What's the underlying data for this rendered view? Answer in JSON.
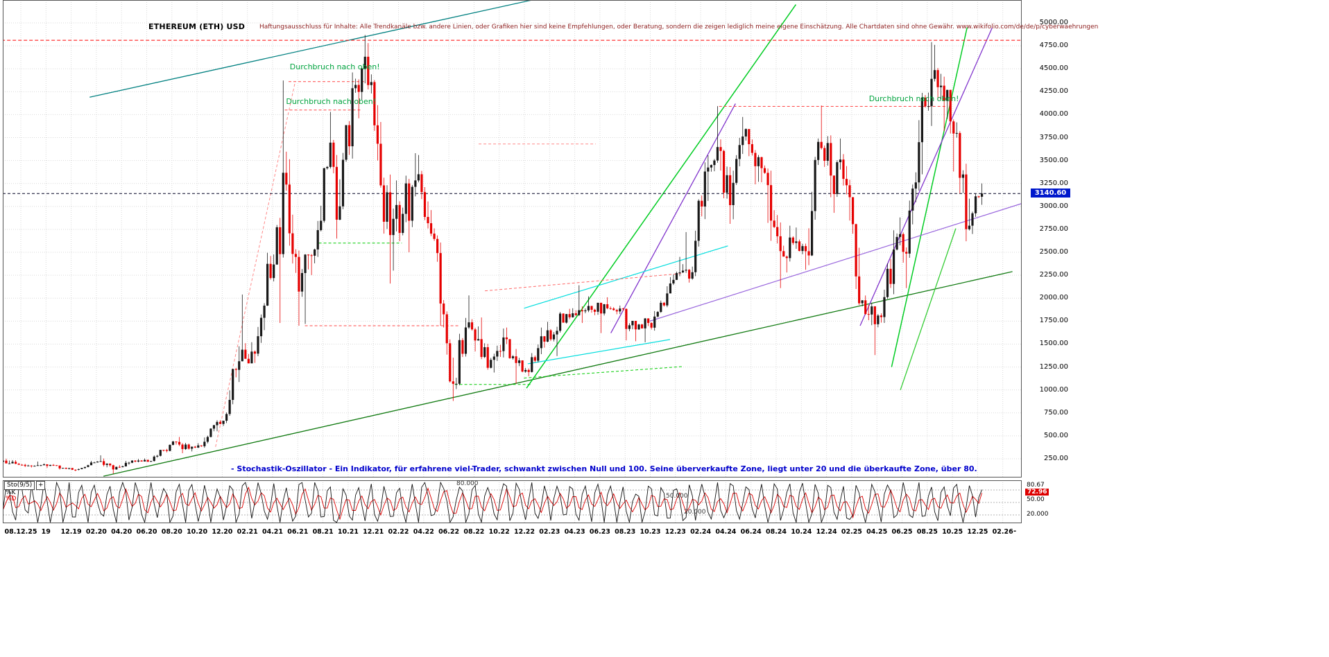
{
  "header": {
    "title": "ETHEREUM (ETH) USD",
    "disclaimer": "Haftungsausschluss für Inhalte: Alle Trendkanäle bzw. andere Linien, oder Grafiken hier sind keine Empfehlungen, oder Beratung, sondern die zeigen lediglich meine eigene Einschätzung. Alle Chartdaten sind ohne Gewähr.  www.wikifolio.com/de/de/p/cyberwaehrungen"
  },
  "annotations": [
    {
      "text": "Durchbruch nach oben!",
      "m": 17.4,
      "price": 4520
    },
    {
      "text": "Durchbruch nach oben!",
      "m": 17.1,
      "price": 4140
    },
    {
      "text": "Durchbruch nach oben!",
      "m": 63.4,
      "price": 4170
    }
  ],
  "note": "- Stochastik-Oszillator - Ein Indikator, für erfahrene viel-Trader, schwankt zwischen Null und 100. Seine überverkaufte Zone, liegt unter 20 und die überkaufte Zone, über 80.",
  "price_axis": {
    "min": 250,
    "max": 5000,
    "step": 250,
    "current": "3140.60",
    "current_value": 3140.6
  },
  "x_axis": {
    "labels": [
      "08.12.25",
      "19",
      "12.19",
      "02.20",
      "04.20",
      "06.20",
      "08.20",
      "10.20",
      "12.20",
      "02.21",
      "04.21",
      "06.21",
      "08.21",
      "10.21",
      "12.21",
      "02.22",
      "04.22",
      "06.22",
      "08.22",
      "10.22",
      "12.22",
      "02.23",
      "04.23",
      "06.23",
      "08.23",
      "10.23",
      "12.23",
      "02.24",
      "04.24",
      "06.24",
      "08.24",
      "10.24",
      "12.24",
      "02.25",
      "04.25",
      "06.25",
      "08.25",
      "10.25",
      "12.25",
      "02.26"
    ],
    "end_dash": "-"
  },
  "oscillator": {
    "indicator_label": "Sto(9/5)",
    "plus_label": "+",
    "k_label": "%K",
    "d_label": "%D",
    "k_value": "80.67",
    "d_value": "72.96",
    "mid_value": "50.00",
    "bottom_value": "20.000",
    "levels": [
      {
        "value": 80,
        "label": "80.000"
      },
      {
        "value": 50,
        "label": "50.000"
      },
      {
        "value": 20,
        "label": "20.000"
      }
    ]
  },
  "colors": {
    "up": "#181818",
    "down": "#e60000",
    "grid": "#d9d9d9",
    "current_badge": "#0018cc",
    "annotation": "#00a33e",
    "note_text": "#0000cc",
    "disclaimer_text": "#8b1a1a",
    "k_line": "#111111",
    "d_line": "#dd0000"
  },
  "chart_data": {
    "type": "candlestick",
    "title": "ETHEREUM (ETH) USD",
    "x_unit": "month",
    "ylim": [
      0,
      5100
    ],
    "y_ticks_step": 250,
    "current_price": 3140.6,
    "months": [
      "07.19",
      "08.19",
      "09.19",
      "10.19",
      "11.19",
      "12.19",
      "01.20",
      "02.20",
      "03.20",
      "04.20",
      "05.20",
      "06.20",
      "07.20",
      "08.20",
      "09.20",
      "10.20",
      "11.20",
      "12.20",
      "01.21",
      "02.21",
      "03.21",
      "04.21",
      "05.21",
      "06.21",
      "07.21",
      "08.21",
      "09.21",
      "10.21",
      "11.21",
      "12.21",
      "01.22",
      "02.22",
      "03.22",
      "04.22",
      "05.22",
      "06.22",
      "07.22",
      "08.22",
      "09.22",
      "10.22",
      "11.22",
      "12.22",
      "01.23",
      "02.23",
      "03.23",
      "04.23",
      "05.23",
      "06.23",
      "07.23",
      "08.23",
      "09.23",
      "10.23",
      "11.23",
      "12.23",
      "01.24",
      "02.24",
      "03.24",
      "04.24",
      "05.24",
      "06.24",
      "07.24",
      "08.24",
      "09.24",
      "10.24",
      "11.24",
      "12.24",
      "01.25",
      "02.25",
      "03.25",
      "04.25",
      "05.25",
      "06.25",
      "07.25",
      "08.25",
      "09.25",
      "10.25",
      "11.25",
      "12.25"
    ],
    "close": [
      217,
      172,
      180,
      183,
      151,
      130,
      180,
      224,
      134,
      206,
      231,
      226,
      346,
      434,
      360,
      387,
      616,
      738,
      1313,
      1418,
      1919,
      2773,
      2707,
      2274,
      2531,
      3430,
      3001,
      4288,
      4631,
      3683,
      2688,
      2919,
      3283,
      2817,
      1942,
      1067,
      1681,
      1554,
      1328,
      1572,
      1294,
      1196,
      1585,
      1605,
      1827,
      1869,
      1874,
      1934,
      1856,
      1705,
      1671,
      1800,
      2052,
      2281,
      2283,
      3380,
      3647,
      3014,
      3762,
      3438,
      3232,
      2513,
      2602,
      2512,
      3703,
      3336,
      3300,
      2237,
      1822,
      1794,
      2530,
      2486,
      3700,
      4390,
      4150,
      3800,
      2790,
      3140.6
    ],
    "high": [
      320,
      235,
      220,
      200,
      192,
      155,
      185,
      288,
      253,
      227,
      248,
      254,
      347,
      446,
      488,
      420,
      620,
      755,
      1476,
      2040,
      1945,
      2798,
      4372,
      2910,
      2540,
      3440,
      4030,
      4460,
      4868,
      4780,
      3920,
      3283,
      3580,
      3560,
      2960,
      1980,
      1785,
      2030,
      1790,
      1670,
      1680,
      1350,
      1680,
      1742,
      1850,
      2141,
      2020,
      1950,
      2010,
      1920,
      1753,
      1860,
      2130,
      2450,
      2720,
      3480,
      4093,
      3730,
      3975,
      3850,
      3560,
      3390,
      2790,
      2770,
      3740,
      4100,
      3740,
      3440,
      2550,
      1950,
      2740,
      2880,
      3940,
      4790,
      4760,
      4270,
      3820,
      3250
    ],
    "low": [
      200,
      160,
      155,
      150,
      132,
      116,
      124,
      210,
      88,
      131,
      185,
      216,
      220,
      320,
      310,
      330,
      370,
      550,
      718,
      1290,
      1295,
      1915,
      1730,
      1700,
      1720,
      2450,
      2650,
      2970,
      3960,
      3500,
      2160,
      2300,
      2500,
      2760,
      1700,
      880,
      1010,
      1420,
      1220,
      1190,
      1070,
      1150,
      1190,
      1461,
      1370,
      1770,
      1730,
      1620,
      1825,
      1540,
      1531,
      1520,
      1790,
      2100,
      2170,
      2240,
      3060,
      2810,
      2860,
      3240,
      2820,
      2110,
      2280,
      2310,
      2360,
      3100,
      2930,
      2100,
      1760,
      1380,
      1730,
      2110,
      2440,
      3350,
      3820,
      3380,
      2620,
      2700
    ],
    "lines": [
      {
        "id": "teal-channel",
        "color": "#008080",
        "width": 1.3,
        "dash": null,
        "from": [
          1.5,
          4190
        ],
        "to": [
          37,
          5260
        ]
      },
      {
        "id": "long-support",
        "color": "#117a11",
        "width": 1.3,
        "dash": null,
        "from": [
          2.6,
          60
        ],
        "to": [
          74.8,
          2290
        ]
      },
      {
        "id": "steep-green-2023",
        "color": "#00cc22",
        "width": 1.5,
        "dash": null,
        "from": [
          36.2,
          1020
        ],
        "to": [
          57.6,
          5200
        ]
      },
      {
        "id": "steep-green-2025a",
        "color": "#00cc22",
        "width": 1.5,
        "dash": null,
        "from": [
          65.2,
          1250
        ],
        "to": [
          71.2,
          4950
        ]
      },
      {
        "id": "steep-green-2025b",
        "color": "#33cc33",
        "width": 1.3,
        "dash": null,
        "from": [
          65.9,
          1000
        ],
        "to": [
          70.3,
          2760
        ]
      },
      {
        "id": "violet-2024",
        "color": "#8033cc",
        "width": 1.3,
        "dash": null,
        "from": [
          42.9,
          1620
        ],
        "to": [
          52.8,
          4120
        ]
      },
      {
        "id": "violet-2025",
        "color": "#8033cc",
        "width": 1.3,
        "dash": null,
        "from": [
          62.7,
          1700
        ],
        "to": [
          73.2,
          4950
        ]
      },
      {
        "id": "violet-long",
        "color": "#9966dd",
        "width": 1.2,
        "dash": null,
        "from": [
          46,
          1750
        ],
        "to": [
          75.5,
          3030
        ]
      },
      {
        "id": "cyan-upper",
        "color": "#00dddd",
        "width": 1.2,
        "dash": null,
        "from": [
          36,
          1890
        ],
        "to": [
          52.2,
          2570
        ]
      },
      {
        "id": "cyan-lower",
        "color": "#00dddd",
        "width": 1.2,
        "dash": null,
        "from": [
          36.3,
          1285
        ],
        "to": [
          47.6,
          1550
        ]
      },
      {
        "id": "red-resistance-top",
        "color": "#ff0000",
        "width": 1,
        "dash": "5 3",
        "from": [
          -5.5,
          4810
        ],
        "to": [
          75.5,
          4810
        ]
      },
      {
        "id": "red-level-4360",
        "color": "#ff4444",
        "width": 1,
        "dash": "4 3",
        "from": [
          17.3,
          4360
        ],
        "to": [
          23.3,
          4360
        ]
      },
      {
        "id": "red-level-4050",
        "color": "#ff4444",
        "width": 1,
        "dash": "4 3",
        "from": [
          17.0,
          4050
        ],
        "to": [
          23.0,
          4050
        ]
      },
      {
        "id": "red-level-4090",
        "color": "#ff4444",
        "width": 1,
        "dash": "4 3",
        "from": [
          51.5,
          4090
        ],
        "to": [
          69.5,
          4090
        ]
      },
      {
        "id": "red-level-3680",
        "color": "#ff8888",
        "width": 1,
        "dash": "4 3",
        "from": [
          32.4,
          3680
        ],
        "to": [
          41.7,
          3680
        ]
      },
      {
        "id": "red-slope-2022",
        "color": "#ff6666",
        "width": 1,
        "dash": "4 3",
        "from": [
          32.9,
          2080
        ],
        "to": [
          48.6,
          2270
        ]
      },
      {
        "id": "red-level-1700",
        "color": "#ff4444",
        "width": 1,
        "dash": "4 3",
        "from": [
          18.6,
          1700
        ],
        "to": [
          30.8,
          1700
        ]
      },
      {
        "id": "red-slope-2021",
        "color": "#ff8888",
        "width": 1,
        "dash": "4 3",
        "from": [
          11.5,
          380
        ],
        "to": [
          17.8,
          4340
        ]
      },
      {
        "id": "green-level-2600",
        "color": "#00cc00",
        "width": 1,
        "dash": "4 3",
        "from": [
          19.7,
          2600
        ],
        "to": [
          26.3,
          2600
        ]
      },
      {
        "id": "green-level-1060",
        "color": "#00cc00",
        "width": 1,
        "dash": "4 3",
        "from": [
          30.5,
          1060
        ],
        "to": [
          36.6,
          1060
        ]
      },
      {
        "id": "green-slope-lows",
        "color": "#00cc00",
        "width": 1,
        "dash": "4 3",
        "from": [
          36,
          1130
        ],
        "to": [
          48.6,
          1255
        ]
      }
    ],
    "oscillator": {
      "type": "stochastic",
      "k_current": 80.67,
      "d_current": 72.96,
      "levels": [
        80,
        50,
        20
      ],
      "range": [
        0,
        100
      ]
    }
  }
}
